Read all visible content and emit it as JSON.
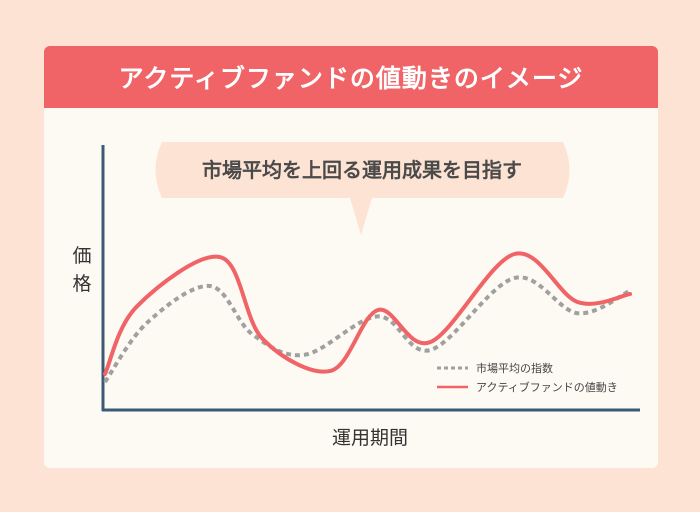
{
  "title": "アクティブファンドの値動きのイメージ",
  "callout": "市場平均を上回る運用成果を目指す",
  "chart_data": {
    "type": "line",
    "xlabel": "運用期間",
    "ylabel": "価格",
    "grid": false,
    "legend_position": "bottom-right",
    "series": [
      {
        "name": "市場平均の指数",
        "style": "dashed",
        "color": "#a0a0a0",
        "values": [
          [
            0,
            5
          ],
          [
            8,
            42
          ],
          [
            20,
            65
          ],
          [
            28,
            35
          ],
          [
            38,
            22
          ],
          [
            52,
            46
          ],
          [
            62,
            25
          ],
          [
            78,
            70
          ],
          [
            90,
            48
          ],
          [
            100,
            62
          ]
        ]
      },
      {
        "name": "アクティブファンドの値動き",
        "style": "solid",
        "color": "#f06366",
        "values": [
          [
            0,
            10
          ],
          [
            6,
            52
          ],
          [
            22,
            83
          ],
          [
            30,
            32
          ],
          [
            43,
            12
          ],
          [
            52,
            50
          ],
          [
            62,
            30
          ],
          [
            78,
            85
          ],
          [
            90,
            55
          ],
          [
            100,
            60
          ]
        ]
      }
    ]
  }
}
